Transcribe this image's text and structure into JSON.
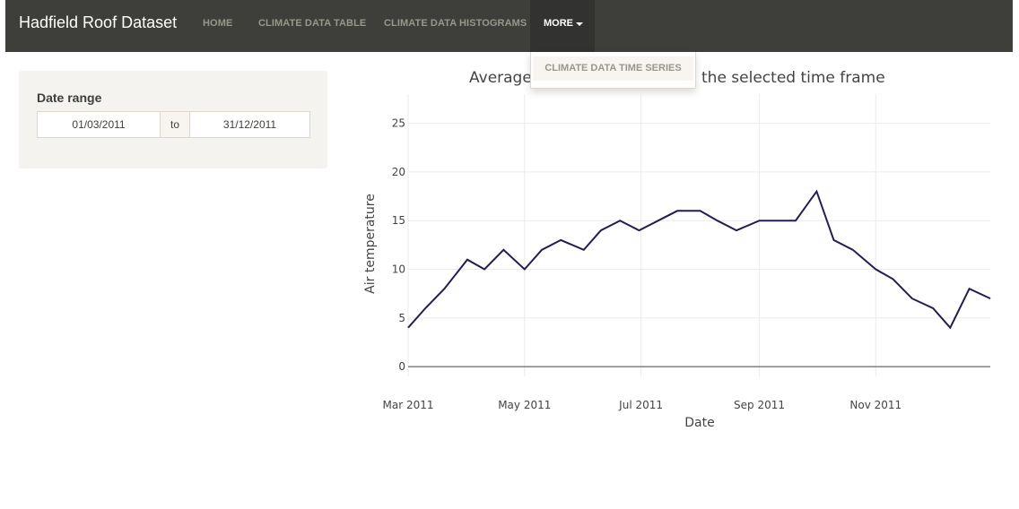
{
  "app": {
    "brand": "Hadfield Roof Dataset"
  },
  "nav": {
    "items": [
      "HOME",
      "CLIMATE DATA TABLE",
      "CLIMATE DATA HISTOGRAMS"
    ],
    "more_label": "MORE",
    "dropdown_item": "CLIMATE DATA TIME SERIES"
  },
  "sidebar": {
    "date_range_label": "Date range",
    "start_date": "01/03/2011",
    "separator": "to",
    "end_date": "31/12/2011"
  },
  "colors": {
    "navbar": "#3e3f3a",
    "line": "#271c52",
    "panel": "#f5f3ef"
  },
  "chart_data": {
    "type": "line",
    "title_left": "Average",
    "title_right": "the selected time frame",
    "xlabel": "Date",
    "ylabel": "Air temperature",
    "x_ticks": [
      "Mar 2011",
      "May 2011",
      "Jul 2011",
      "Sep 2011",
      "Nov 2011"
    ],
    "y_ticks": [
      "0",
      "5",
      "10",
      "15",
      "20",
      "25"
    ],
    "x_range": [
      "2011-03-01",
      "2011-12-31"
    ],
    "y_range": [
      -1,
      28
    ],
    "grid": true,
    "series": [
      {
        "color": "#271c52",
        "x": [
          "2011-03-01",
          "2011-03-10",
          "2011-03-20",
          "2011-04-01",
          "2011-04-10",
          "2011-04-20",
          "2011-05-01",
          "2011-05-10",
          "2011-05-20",
          "2011-06-01",
          "2011-06-10",
          "2011-06-20",
          "2011-06-30",
          "2011-07-10",
          "2011-07-20",
          "2011-08-01",
          "2011-08-10",
          "2011-08-20",
          "2011-09-01",
          "2011-09-10",
          "2011-09-20",
          "2011-10-01",
          "2011-10-10",
          "2011-10-20",
          "2011-11-01",
          "2011-11-10",
          "2011-11-20",
          "2011-12-01",
          "2011-12-10",
          "2011-12-20",
          "2011-12-31"
        ],
        "y": [
          4,
          6,
          8,
          11,
          10,
          12,
          10,
          12,
          13,
          12,
          14,
          15,
          14,
          15,
          16,
          16,
          15,
          14,
          15,
          15,
          15,
          18,
          13,
          12,
          10,
          9,
          7,
          6,
          4,
          8,
          7
        ]
      }
    ]
  }
}
